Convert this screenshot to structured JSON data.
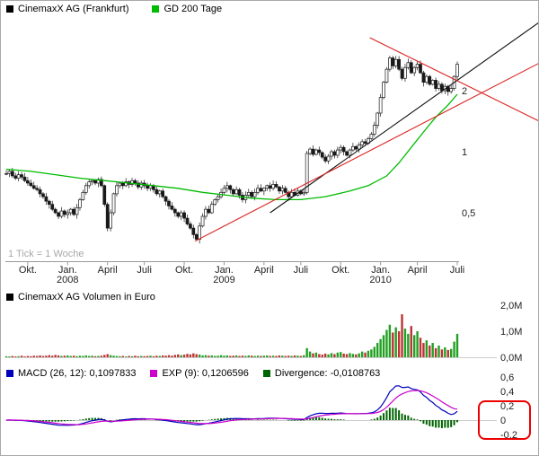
{
  "header": {
    "price_legend": [
      {
        "label": "CinemaxX AG (Frankfurt)",
        "color": "#000000"
      },
      {
        "label": "GD 200 Tage",
        "color": "#00bb00"
      }
    ],
    "tick_note": "1 Tick = 1 Woche"
  },
  "volume_legend": {
    "label": "CinemaxX AG Volumen in Euro",
    "color": "#000000"
  },
  "macd_legend": [
    {
      "label": "MACD (26, 12): 0,1097833",
      "color": "#0000bb"
    },
    {
      "label": "EXP (9): 0,1206596",
      "color": "#cc00cc"
    },
    {
      "label": "Divergence: -0,0108763",
      "color": "#006400"
    }
  ],
  "chart_data": [
    {
      "type": "candlestick",
      "title": "CinemaxX AG (Frankfurt)",
      "y_scale": "log",
      "y_ticks": [
        {
          "label": "2",
          "value": 2
        },
        {
          "label": "1",
          "value": 1
        },
        {
          "label": "0,5",
          "value": 0.5
        }
      ],
      "x_ticks": [
        {
          "label": "Okt.",
          "week": 7
        },
        {
          "label": "Jan.",
          "sub": "2008",
          "week": 20
        },
        {
          "label": "April",
          "week": 33
        },
        {
          "label": "Juli",
          "week": 45
        },
        {
          "label": "Okt.",
          "week": 58
        },
        {
          "label": "Jan.",
          "sub": "2009",
          "week": 71
        },
        {
          "label": "April",
          "week": 84
        },
        {
          "label": "Juli",
          "week": 96
        },
        {
          "label": "Okt.",
          "week": 109
        },
        {
          "label": "Jan.",
          "sub": "2010",
          "week": 122
        },
        {
          "label": "April",
          "week": 134
        },
        {
          "label": "Juli",
          "week": 147
        }
      ],
      "closes": [
        0.78,
        0.8,
        0.76,
        0.74,
        0.77,
        0.75,
        0.72,
        0.7,
        0.68,
        0.66,
        0.65,
        0.62,
        0.6,
        0.57,
        0.55,
        0.52,
        0.5,
        0.48,
        0.51,
        0.49,
        0.5,
        0.52,
        0.49,
        0.53,
        0.58,
        0.63,
        0.68,
        0.71,
        0.72,
        0.7,
        0.73,
        0.68,
        0.55,
        0.42,
        0.5,
        0.62,
        0.68,
        0.7,
        0.68,
        0.71,
        0.69,
        0.72,
        0.7,
        0.67,
        0.7,
        0.68,
        0.66,
        0.68,
        0.65,
        0.62,
        0.64,
        0.6,
        0.57,
        0.54,
        0.52,
        0.5,
        0.48,
        0.5,
        0.47,
        0.44,
        0.42,
        0.39,
        0.37,
        0.43,
        0.48,
        0.52,
        0.5,
        0.55,
        0.58,
        0.6,
        0.63,
        0.66,
        0.68,
        0.65,
        0.62,
        0.65,
        0.61,
        0.58,
        0.61,
        0.63,
        0.6,
        0.63,
        0.66,
        0.64,
        0.66,
        0.68,
        0.66,
        0.69,
        0.67,
        0.64,
        0.66,
        0.63,
        0.6,
        0.63,
        0.61,
        0.64,
        0.62,
        0.63,
        0.98,
        1.03,
        0.97,
        1.02,
        0.99,
        0.94,
        0.9,
        0.95,
        1.0,
        0.96,
        1.02,
        1.05,
        1.0,
        0.96,
        1.02,
        1.06,
        1.03,
        1.08,
        1.12,
        1.1,
        1.16,
        1.22,
        1.35,
        1.55,
        1.85,
        2.2,
        2.55,
        2.9,
        2.65,
        2.85,
        2.55,
        2.3,
        2.6,
        2.75,
        2.45,
        2.6,
        2.7,
        2.45,
        2.2,
        2.35,
        2.15,
        2.25,
        2.05,
        2.15,
        2.0,
        2.1,
        1.98,
        2.05,
        2.35,
        2.7
      ],
      "overlay": {
        "name": "GD 200 Tage",
        "color": "#00bb00",
        "points": [
          [
            0,
            0.82
          ],
          [
            8,
            0.8
          ],
          [
            16,
            0.77
          ],
          [
            24,
            0.74
          ],
          [
            32,
            0.72
          ],
          [
            40,
            0.7
          ],
          [
            48,
            0.68
          ],
          [
            56,
            0.66
          ],
          [
            64,
            0.63
          ],
          [
            72,
            0.61
          ],
          [
            80,
            0.59
          ],
          [
            88,
            0.58
          ],
          [
            96,
            0.58
          ],
          [
            104,
            0.6
          ],
          [
            112,
            0.64
          ],
          [
            118,
            0.68
          ],
          [
            124,
            0.76
          ],
          [
            128,
            0.88
          ],
          [
            132,
            1.05
          ],
          [
            136,
            1.25
          ],
          [
            140,
            1.48
          ],
          [
            144,
            1.7
          ],
          [
            147,
            1.92
          ]
        ]
      },
      "trendlines": [
        {
          "name": "uptrend-black",
          "color": "#111111",
          "from": {
            "week": 86,
            "price": 0.5
          },
          "to": {
            "week": 176,
            "price": 4.6
          }
        },
        {
          "name": "support-red",
          "color": "#dd2222",
          "from": {
            "week": 61.5,
            "price": 0.362
          },
          "to": {
            "week": 176,
            "price": 2.85
          }
        },
        {
          "name": "resistance-red",
          "color": "#dd2222",
          "from": {
            "week": 118.5,
            "price": 3.65
          },
          "to": {
            "week": 176,
            "price": 1.36
          }
        }
      ],
      "note": "1 Tick = 1 Woche"
    },
    {
      "type": "bar",
      "title": "CinemaxX AG Volumen in Euro",
      "unit": "M",
      "y_ticks": [
        {
          "label": "2,0M",
          "value": 2
        },
        {
          "label": "1,0M",
          "value": 1
        },
        {
          "label": "0,0M",
          "value": 0
        }
      ],
      "up_color": "#22a022",
      "down_color": "#bb3333",
      "values": [
        0.04,
        0.03,
        0.05,
        0.03,
        0.04,
        0.06,
        0.03,
        0.05,
        0.04,
        0.06,
        0.05,
        0.07,
        0.05,
        0.06,
        0.08,
        0.06,
        0.09,
        0.07,
        0.05,
        0.06,
        0.07,
        0.05,
        0.06,
        0.04,
        0.06,
        0.05,
        0.07,
        0.05,
        0.06,
        0.04,
        0.05,
        0.06,
        0.09,
        0.12,
        0.08,
        0.06,
        0.05,
        0.04,
        0.05,
        0.03,
        0.05,
        0.04,
        0.06,
        0.04,
        0.05,
        0.04,
        0.05,
        0.06,
        0.04,
        0.06,
        0.05,
        0.07,
        0.06,
        0.08,
        0.06,
        0.09,
        0.11,
        0.08,
        0.1,
        0.13,
        0.11,
        0.15,
        0.12,
        0.1,
        0.07,
        0.08,
        0.06,
        0.07,
        0.05,
        0.06,
        0.08,
        0.06,
        0.07,
        0.05,
        0.06,
        0.07,
        0.05,
        0.06,
        0.05,
        0.07,
        0.06,
        0.05,
        0.06,
        0.05,
        0.06,
        0.07,
        0.05,
        0.06,
        0.05,
        0.07,
        0.06,
        0.05,
        0.06,
        0.05,
        0.07,
        0.06,
        0.05,
        0.08,
        0.35,
        0.22,
        0.15,
        0.18,
        0.12,
        0.1,
        0.14,
        0.11,
        0.16,
        0.12,
        0.18,
        0.2,
        0.14,
        0.12,
        0.16,
        0.13,
        0.11,
        0.15,
        0.22,
        0.18,
        0.25,
        0.3,
        0.4,
        0.55,
        0.7,
        0.85,
        1.05,
        1.25,
        0.95,
        1.15,
        1.0,
        1.65,
        1.1,
        0.9,
        1.2,
        0.85,
        1.0,
        0.75,
        0.55,
        0.65,
        0.45,
        0.55,
        0.35,
        0.45,
        0.3,
        0.38,
        0.28,
        0.32,
        0.6,
        0.9
      ]
    },
    {
      "type": "macd",
      "params": {
        "fast": 12,
        "slow": 26,
        "signal": 9
      },
      "current": {
        "macd": "0,1097833",
        "exp": "0,1206596",
        "divergence": "-0,0108763"
      },
      "y_ticks": [
        {
          "label": "0,6",
          "value": 0.6
        },
        {
          "label": "0,4",
          "value": 0.4
        },
        {
          "label": "0,2",
          "value": 0.2
        },
        {
          "label": "0",
          "value": 0
        },
        {
          "label": "-0,2",
          "value": -0.2
        }
      ],
      "colors": {
        "macd": "#0000bb",
        "exp": "#cc00cc",
        "divergence": "#006400"
      },
      "annotation_box": {
        "x": 532,
        "y": 446,
        "width": 57,
        "height": 42,
        "color": "#ee0000"
      }
    }
  ]
}
